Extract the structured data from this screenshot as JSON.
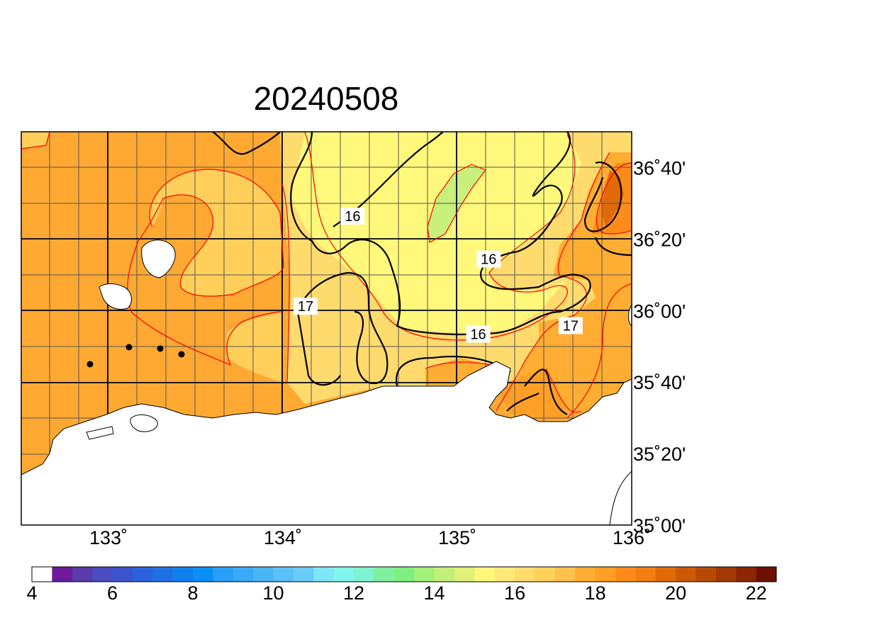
{
  "title": "20240508",
  "map": {
    "x_ticks": [
      {
        "lon": 133,
        "label": "133˚"
      },
      {
        "lon": 134,
        "label": "134˚"
      },
      {
        "lon": 135,
        "label": "135˚"
      },
      {
        "lon": 136,
        "label": "136˚"
      }
    ],
    "y_ticks": [
      {
        "lat": 36.6667,
        "label": "36˚40'"
      },
      {
        "lat": 36.3333,
        "label": "36˚20'"
      },
      {
        "lat": 36.0,
        "label": "36˚00'"
      },
      {
        "lat": 35.6667,
        "label": "35˚40'"
      },
      {
        "lat": 35.3333,
        "label": "35˚20'"
      },
      {
        "lat": 35.0,
        "label": "35˚00'"
      }
    ],
    "contour_labels": [
      {
        "text": "16",
        "lon": 134.4,
        "lat": 36.44
      },
      {
        "text": "16",
        "lon": 135.18,
        "lat": 36.24
      },
      {
        "text": "17",
        "lon": 134.13,
        "lat": 36.02
      },
      {
        "text": "16",
        "lon": 135.12,
        "lat": 35.89
      },
      {
        "text": "17",
        "lon": 135.65,
        "lat": 35.93
      }
    ],
    "land_color": "#ffffff",
    "contour_color": "#000000",
    "isoline_color": "#ff0000"
  },
  "colorbar": {
    "tick_labels": [
      "4",
      "6",
      "8",
      "10",
      "12",
      "14",
      "16",
      "18",
      "20",
      "22"
    ],
    "colors": [
      "#ffffff",
      "#6e1a9c",
      "#5b3aaa",
      "#4a4cc0",
      "#3b55cf",
      "#2b63dc",
      "#1f70e4",
      "#1180ee",
      "#0a8ff7",
      "#2a9ef7",
      "#3aaaf7",
      "#4ab5f5",
      "#5bc0f5",
      "#6bcbf7",
      "#7fe6f7",
      "#7ff5ec",
      "#7ff2d2",
      "#7ff0a0",
      "#7ff080",
      "#a3f07a",
      "#c3f07a",
      "#e0f07a",
      "#fff87a",
      "#ffe77a",
      "#ffdc6b",
      "#ffd15c",
      "#ffc04f",
      "#ffad33",
      "#ff9f26",
      "#ff8c1a",
      "#f27d10",
      "#e06a08",
      "#cc5a05",
      "#b84a05",
      "#a33a05",
      "#8c2605",
      "#6e1000"
    ]
  }
}
